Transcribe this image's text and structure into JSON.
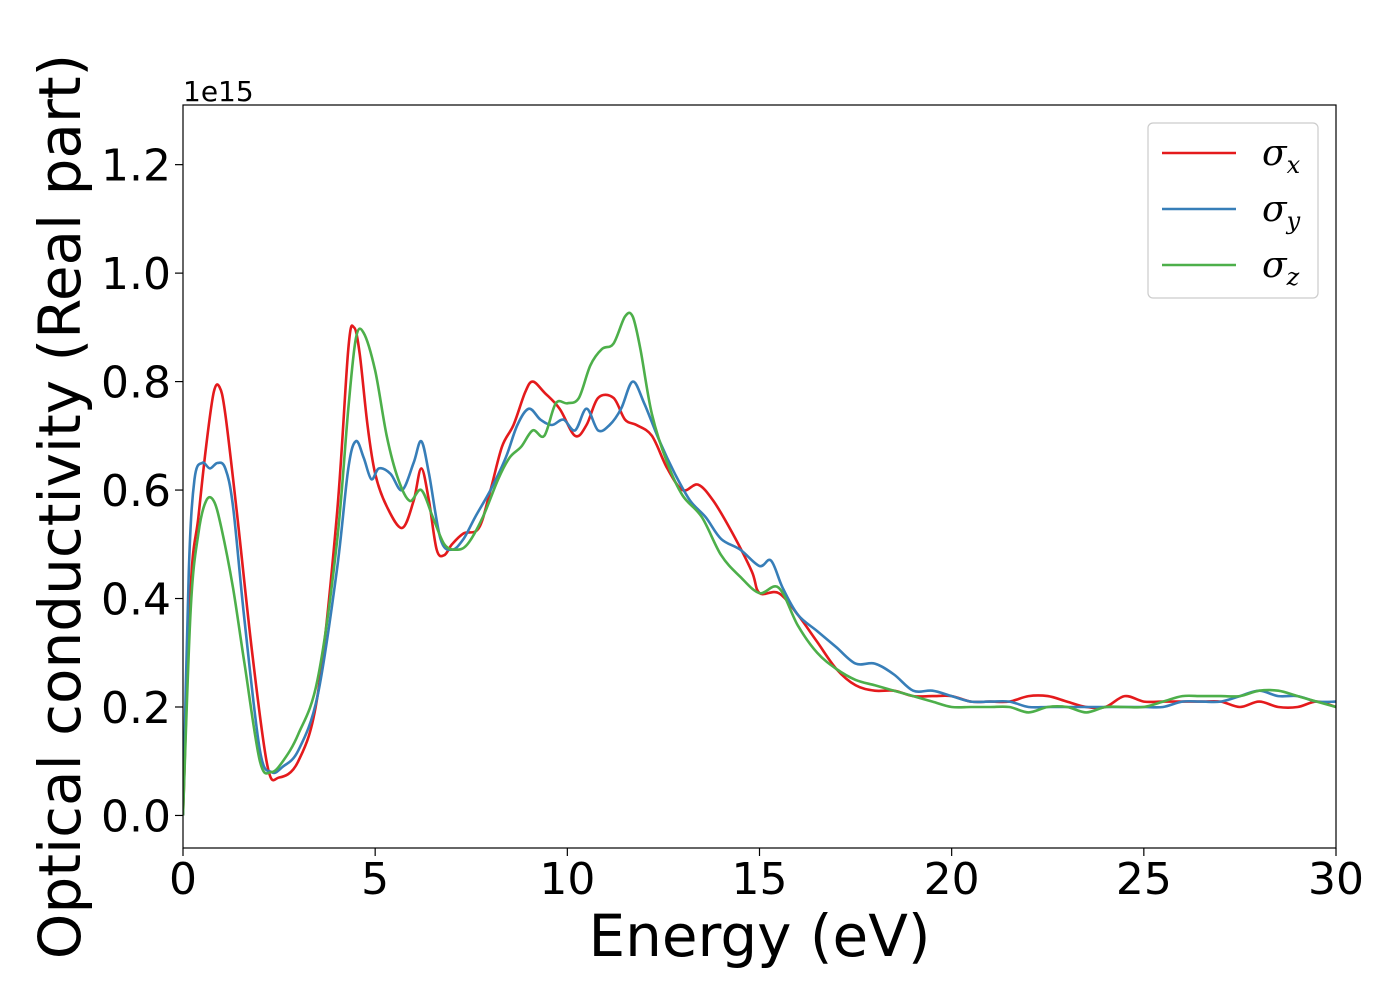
{
  "chart_data": {
    "type": "line",
    "title": "",
    "xlabel": "Energy (eV)",
    "ylabel": "Optical conductivity (Real part)",
    "y_offset_label": "1e15",
    "xlim": [
      0,
      30
    ],
    "ylim": [
      -0.06,
      1.31
    ],
    "x_ticks": [
      0,
      5,
      10,
      15,
      20,
      25,
      30
    ],
    "y_ticks": [
      0.0,
      0.2,
      0.4,
      0.6,
      0.8,
      1.0,
      1.2
    ],
    "x_tick_labels": [
      "0",
      "5",
      "10",
      "15",
      "20",
      "25",
      "30"
    ],
    "y_tick_labels": [
      "0.0",
      "0.2",
      "0.4",
      "0.6",
      "0.8",
      "1.0",
      "1.2"
    ],
    "grid": false,
    "legend_position": "top-right",
    "series": [
      {
        "name": "σx",
        "label_main": "σ",
        "label_sub": "x",
        "color": "#e41a1c",
        "x": [
          0,
          0.2,
          0.4,
          0.6,
          0.8,
          0.95,
          1.1,
          1.4,
          1.8,
          2.2,
          2.5,
          3.0,
          3.5,
          4.0,
          4.3,
          4.45,
          4.6,
          4.8,
          5.0,
          5.3,
          5.7,
          6.0,
          6.2,
          6.4,
          6.6,
          6.8,
          7.0,
          7.3,
          7.7,
          8.0,
          8.3,
          8.6,
          8.9,
          9.1,
          9.4,
          9.8,
          10.2,
          10.5,
          10.8,
          11.2,
          11.5,
          11.8,
          12.2,
          12.6,
          13.0,
          13.4,
          13.8,
          14.3,
          14.8,
          15.0,
          15.5,
          16.0,
          16.5,
          17.0,
          17.5,
          18.0,
          18.5,
          19.0,
          19.5,
          20.0,
          20.5,
          21.0,
          21.5,
          22.0,
          22.5,
          23.0,
          23.5,
          24.0,
          24.5,
          25.0,
          25.5,
          26.0,
          26.5,
          27.0,
          27.5,
          28.0,
          28.5,
          29.0,
          29.5,
          30.0
        ],
        "y": [
          0,
          0.42,
          0.55,
          0.68,
          0.78,
          0.79,
          0.74,
          0.56,
          0.3,
          0.09,
          0.07,
          0.1,
          0.22,
          0.55,
          0.86,
          0.9,
          0.85,
          0.72,
          0.63,
          0.57,
          0.53,
          0.58,
          0.64,
          0.58,
          0.49,
          0.48,
          0.5,
          0.52,
          0.53,
          0.6,
          0.68,
          0.72,
          0.78,
          0.8,
          0.78,
          0.75,
          0.7,
          0.72,
          0.77,
          0.77,
          0.73,
          0.72,
          0.7,
          0.64,
          0.6,
          0.61,
          0.58,
          0.52,
          0.45,
          0.41,
          0.41,
          0.37,
          0.32,
          0.27,
          0.24,
          0.23,
          0.23,
          0.22,
          0.22,
          0.22,
          0.21,
          0.21,
          0.21,
          0.22,
          0.22,
          0.21,
          0.2,
          0.2,
          0.22,
          0.21,
          0.21,
          0.21,
          0.21,
          0.21,
          0.2,
          0.21,
          0.2,
          0.2,
          0.21,
          0.2
        ]
      },
      {
        "name": "σy",
        "label_main": "σ",
        "label_sub": "y",
        "color": "#377eb8",
        "x": [
          0,
          0.15,
          0.3,
          0.5,
          0.7,
          0.9,
          1.1,
          1.3,
          1.6,
          2.0,
          2.3,
          2.6,
          3.0,
          3.5,
          4.0,
          4.3,
          4.5,
          4.7,
          4.9,
          5.1,
          5.4,
          5.7,
          6.0,
          6.2,
          6.4,
          6.7,
          7.0,
          7.3,
          7.6,
          8.0,
          8.4,
          8.7,
          9.0,
          9.3,
          9.6,
          9.9,
          10.2,
          10.5,
          10.8,
          11.1,
          11.4,
          11.7,
          12.0,
          12.4,
          12.8,
          13.2,
          13.6,
          14.0,
          14.5,
          15.0,
          15.3,
          15.6,
          16.0,
          16.5,
          17.0,
          17.5,
          18.0,
          18.5,
          19.0,
          19.5,
          20.0,
          20.5,
          21.0,
          21.5,
          22.0,
          22.5,
          23.0,
          23.5,
          24.0,
          24.5,
          25.0,
          25.5,
          26.0,
          26.5,
          27.0,
          27.5,
          28.0,
          28.5,
          29.0,
          29.5,
          30.0
        ],
        "y": [
          0,
          0.45,
          0.62,
          0.65,
          0.64,
          0.65,
          0.64,
          0.57,
          0.36,
          0.12,
          0.08,
          0.09,
          0.12,
          0.22,
          0.45,
          0.64,
          0.69,
          0.66,
          0.62,
          0.64,
          0.63,
          0.6,
          0.65,
          0.69,
          0.63,
          0.51,
          0.49,
          0.51,
          0.55,
          0.6,
          0.66,
          0.72,
          0.75,
          0.73,
          0.72,
          0.73,
          0.71,
          0.75,
          0.71,
          0.72,
          0.75,
          0.8,
          0.76,
          0.69,
          0.63,
          0.58,
          0.55,
          0.51,
          0.49,
          0.46,
          0.47,
          0.42,
          0.37,
          0.34,
          0.31,
          0.28,
          0.28,
          0.26,
          0.23,
          0.23,
          0.22,
          0.21,
          0.21,
          0.21,
          0.2,
          0.2,
          0.2,
          0.2,
          0.2,
          0.2,
          0.2,
          0.2,
          0.21,
          0.21,
          0.21,
          0.22,
          0.23,
          0.22,
          0.22,
          0.21,
          0.21
        ]
      },
      {
        "name": "σz",
        "label_main": "σ",
        "label_sub": "z",
        "color": "#4daf4a",
        "x": [
          0,
          0.2,
          0.4,
          0.6,
          0.8,
          1.0,
          1.3,
          1.6,
          2.0,
          2.3,
          2.6,
          3.0,
          3.5,
          4.0,
          4.3,
          4.5,
          4.7,
          5.0,
          5.3,
          5.6,
          5.9,
          6.2,
          6.5,
          6.8,
          7.1,
          7.4,
          7.8,
          8.2,
          8.5,
          8.8,
          9.1,
          9.4,
          9.7,
          10.0,
          10.3,
          10.6,
          10.9,
          11.2,
          11.5,
          11.7,
          11.9,
          12.2,
          12.6,
          13.0,
          13.5,
          14.0,
          14.5,
          15.0,
          15.5,
          16.0,
          16.5,
          17.0,
          17.5,
          18.0,
          18.5,
          19.0,
          19.5,
          20.0,
          20.5,
          21.0,
          21.5,
          22.0,
          22.5,
          23.0,
          23.5,
          24.0,
          24.5,
          25.0,
          25.5,
          26.0,
          26.5,
          27.0,
          27.5,
          28.0,
          28.5,
          29.0,
          29.5,
          30.0
        ],
        "y": [
          0,
          0.38,
          0.52,
          0.58,
          0.58,
          0.53,
          0.42,
          0.28,
          0.1,
          0.08,
          0.1,
          0.15,
          0.25,
          0.5,
          0.75,
          0.88,
          0.89,
          0.82,
          0.7,
          0.62,
          0.58,
          0.6,
          0.55,
          0.5,
          0.49,
          0.5,
          0.55,
          0.62,
          0.66,
          0.68,
          0.71,
          0.7,
          0.76,
          0.76,
          0.77,
          0.83,
          0.86,
          0.87,
          0.92,
          0.92,
          0.86,
          0.74,
          0.65,
          0.59,
          0.55,
          0.48,
          0.44,
          0.41,
          0.42,
          0.35,
          0.3,
          0.27,
          0.25,
          0.24,
          0.23,
          0.22,
          0.21,
          0.2,
          0.2,
          0.2,
          0.2,
          0.19,
          0.2,
          0.2,
          0.19,
          0.2,
          0.2,
          0.2,
          0.21,
          0.22,
          0.22,
          0.22,
          0.22,
          0.23,
          0.23,
          0.22,
          0.21,
          0.2
        ]
      }
    ]
  }
}
